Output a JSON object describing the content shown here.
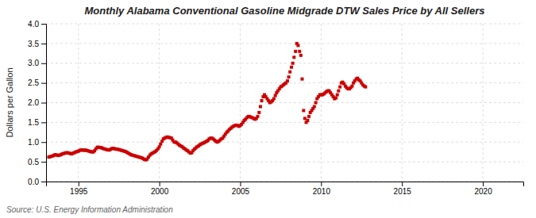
{
  "chart_data": {
    "type": "scatter",
    "title": "Monthly Alabama Conventional Gasoline Midgrade DTW Sales Price by All Sellers",
    "ylabel": "Dollars per Gallon",
    "source": "Source: U.S. Energy Information Administration",
    "color": "#CC0000",
    "marker": "square",
    "grid": true,
    "xlim": [
      1993.0,
      2022.5
    ],
    "ylim": [
      0.0,
      4.0
    ],
    "xticks": [
      1995,
      2000,
      2005,
      2010,
      2015,
      2020
    ],
    "yticks": [
      {
        "value": 0.0,
        "label": "0.0"
      },
      0.5,
      {
        "value": 1.0,
        "label": "1.0"
      },
      1.5,
      {
        "value": 2.0,
        "label": "2.0"
      },
      2.5,
      {
        "value": 3.0,
        "label": "3.0"
      },
      3.5,
      {
        "value": 4.0,
        "label": "4.0"
      }
    ],
    "x": [
      1993.17,
      1993.25,
      1993.33,
      1993.42,
      1993.5,
      1993.58,
      1993.67,
      1993.75,
      1993.83,
      1993.92,
      1994.0,
      1994.08,
      1994.17,
      1994.25,
      1994.33,
      1994.42,
      1994.5,
      1994.58,
      1994.67,
      1994.75,
      1994.83,
      1994.92,
      1995.0,
      1995.08,
      1995.17,
      1995.25,
      1995.33,
      1995.42,
      1995.5,
      1995.58,
      1995.67,
      1995.75,
      1995.83,
      1995.92,
      1996.0,
      1996.08,
      1996.17,
      1996.25,
      1996.33,
      1996.42,
      1996.5,
      1996.58,
      1996.67,
      1996.75,
      1996.83,
      1996.92,
      1997.0,
      1997.08,
      1997.17,
      1997.25,
      1997.33,
      1997.42,
      1997.5,
      1997.58,
      1997.67,
      1997.75,
      1997.83,
      1997.92,
      1998.0,
      1998.08,
      1998.17,
      1998.25,
      1998.33,
      1998.42,
      1998.5,
      1998.58,
      1998.67,
      1998.75,
      1998.83,
      1998.92,
      1999.0,
      1999.08,
      1999.17,
      1999.25,
      1999.33,
      1999.42,
      1999.5,
      1999.58,
      1999.67,
      1999.75,
      1999.83,
      1999.92,
      2000.0,
      2000.08,
      2000.17,
      2000.25,
      2000.33,
      2000.42,
      2000.5,
      2000.58,
      2000.67,
      2000.75,
      2000.83,
      2000.92,
      2001.0,
      2001.08,
      2001.17,
      2001.25,
      2001.33,
      2001.42,
      2001.5,
      2001.58,
      2001.67,
      2001.75,
      2001.83,
      2001.92,
      2002.0,
      2002.08,
      2002.17,
      2002.25,
      2002.33,
      2002.42,
      2002.5,
      2002.58,
      2002.67,
      2002.75,
      2002.83,
      2002.92,
      2003.0,
      2003.08,
      2003.17,
      2003.25,
      2003.33,
      2003.42,
      2003.5,
      2003.58,
      2003.67,
      2003.75,
      2003.83,
      2003.92,
      2004.0,
      2004.08,
      2004.17,
      2004.25,
      2004.33,
      2004.42,
      2004.5,
      2004.58,
      2004.67,
      2004.75,
      2004.83,
      2004.92,
      2005.0,
      2005.08,
      2005.17,
      2005.25,
      2005.33,
      2005.42,
      2005.5,
      2005.58,
      2005.67,
      2005.75,
      2005.83,
      2005.92,
      2006.0,
      2006.08,
      2006.17,
      2006.25,
      2006.33,
      2006.42,
      2006.5,
      2006.58,
      2006.67,
      2006.75,
      2006.83,
      2006.92,
      2007.0,
      2007.08,
      2007.17,
      2007.25,
      2007.33,
      2007.42,
      2007.5,
      2007.58,
      2007.67,
      2007.75,
      2007.83,
      2007.92,
      2008.0,
      2008.08,
      2008.17,
      2008.25,
      2008.33,
      2008.42,
      2008.5,
      2008.58,
      2008.67,
      2008.75,
      2008.83,
      2008.92,
      2009.0,
      2009.08,
      2009.17,
      2009.25,
      2009.33,
      2009.42,
      2009.5,
      2009.58,
      2009.67,
      2009.75,
      2009.83,
      2009.92,
      2010.0,
      2010.08,
      2010.17,
      2010.25,
      2010.33,
      2010.42,
      2010.5,
      2010.58,
      2010.67,
      2010.75,
      2010.83,
      2010.92,
      2011.0,
      2011.08,
      2011.17,
      2011.25,
      2011.33,
      2011.42,
      2011.5,
      2011.58,
      2011.67,
      2011.75,
      2011.83,
      2011.92,
      2012.0,
      2012.08,
      2012.17,
      2012.25,
      2012.33,
      2012.42,
      2012.5,
      2012.58,
      2012.67,
      2012.75
    ],
    "values": [
      0.62,
      0.63,
      0.64,
      0.65,
      0.67,
      0.68,
      0.67,
      0.66,
      0.67,
      0.68,
      0.7,
      0.71,
      0.72,
      0.73,
      0.73,
      0.72,
      0.71,
      0.7,
      0.72,
      0.73,
      0.75,
      0.76,
      0.77,
      0.79,
      0.8,
      0.8,
      0.79,
      0.8,
      0.79,
      0.78,
      0.77,
      0.76,
      0.75,
      0.75,
      0.78,
      0.83,
      0.87,
      0.87,
      0.86,
      0.86,
      0.84,
      0.83,
      0.82,
      0.81,
      0.8,
      0.8,
      0.82,
      0.84,
      0.84,
      0.83,
      0.82,
      0.82,
      0.81,
      0.8,
      0.79,
      0.78,
      0.77,
      0.76,
      0.74,
      0.72,
      0.7,
      0.68,
      0.67,
      0.66,
      0.65,
      0.64,
      0.63,
      0.62,
      0.61,
      0.6,
      0.58,
      0.56,
      0.55,
      0.57,
      0.62,
      0.67,
      0.7,
      0.72,
      0.74,
      0.76,
      0.79,
      0.83,
      0.88,
      0.95,
      1.02,
      1.08,
      1.1,
      1.12,
      1.13,
      1.12,
      1.11,
      1.1,
      1.05,
      1.0,
      1.0,
      0.98,
      0.95,
      0.92,
      0.9,
      0.88,
      0.85,
      0.83,
      0.8,
      0.78,
      0.75,
      0.72,
      0.73,
      0.78,
      0.82,
      0.85,
      0.88,
      0.9,
      0.93,
      0.95,
      0.97,
      0.98,
      1.0,
      1.02,
      1.04,
      1.08,
      1.1,
      1.1,
      1.08,
      1.05,
      1.02,
      1.0,
      1.02,
      1.05,
      1.08,
      1.1,
      1.15,
      1.2,
      1.25,
      1.28,
      1.32,
      1.35,
      1.38,
      1.4,
      1.42,
      1.43,
      1.42,
      1.4,
      1.42,
      1.45,
      1.5,
      1.55,
      1.58,
      1.62,
      1.65,
      1.65,
      1.63,
      1.62,
      1.6,
      1.58,
      1.6,
      1.65,
      1.75,
      1.9,
      2.05,
      2.15,
      2.2,
      2.15,
      2.1,
      2.05,
      2.0,
      2.02,
      2.05,
      2.1,
      2.18,
      2.25,
      2.3,
      2.35,
      2.4,
      2.42,
      2.45,
      2.48,
      2.5,
      2.55,
      2.65,
      2.78,
      2.9,
      3.0,
      3.15,
      3.3,
      3.5,
      3.45,
      3.3,
      3.2,
      2.6,
      1.8,
      1.6,
      1.5,
      1.55,
      1.65,
      1.75,
      1.8,
      1.85,
      1.9,
      2.0,
      2.1,
      2.15,
      2.2,
      2.2,
      2.2,
      2.22,
      2.25,
      2.28,
      2.3,
      2.3,
      2.25,
      2.2,
      2.15,
      2.1,
      2.12,
      2.2,
      2.3,
      2.4,
      2.5,
      2.52,
      2.48,
      2.42,
      2.38,
      2.35,
      2.35,
      2.38,
      2.42,
      2.5,
      2.55,
      2.6,
      2.62,
      2.58,
      2.55,
      2.5,
      2.45,
      2.42,
      2.4
    ]
  }
}
